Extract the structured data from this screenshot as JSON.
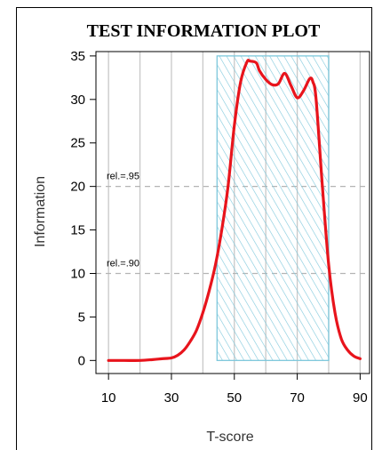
{
  "chart_data": {
    "type": "line",
    "title": "TEST INFORMATION PLOT",
    "xlabel": "T-score",
    "ylabel": "Information",
    "xlim": [
      6,
      93
    ],
    "ylim": [
      -1.5,
      35.5
    ],
    "x_ticks": [
      10,
      30,
      50,
      70,
      90
    ],
    "y_ticks": [
      0,
      5,
      10,
      15,
      20,
      25,
      30,
      35
    ],
    "vertical_gridlines": [
      10,
      20,
      30,
      40,
      50,
      60,
      70,
      80,
      90
    ],
    "grid": true,
    "line_color": "#e8141c",
    "reference_lines": [
      {
        "label": "rel.=.95",
        "y": 20
      },
      {
        "label": "rel.=.90",
        "y": 10
      }
    ],
    "shaded_region": {
      "x": [
        44.5,
        80
      ],
      "y": [
        0,
        35
      ],
      "color": "#7ec8dc"
    },
    "series": [
      {
        "x": [
          10,
          15,
          20,
          24,
          27,
          30,
          32,
          34,
          36,
          38,
          40,
          42,
          44,
          46,
          48,
          50,
          52,
          54,
          55,
          57,
          58,
          60,
          62,
          64,
          66,
          68,
          70,
          72,
          74,
          75,
          76,
          78,
          80,
          82,
          84,
          86,
          88,
          90
        ],
        "values": [
          0,
          0,
          0,
          0.1,
          0.2,
          0.3,
          0.6,
          1.2,
          2.2,
          3.5,
          5.5,
          8.0,
          11.0,
          15.0,
          20.0,
          27.0,
          32.0,
          34.3,
          34.4,
          34.2,
          33.3,
          32.3,
          31.7,
          31.8,
          33.0,
          31.6,
          30.2,
          31.0,
          32.4,
          32.0,
          30.0,
          20.0,
          11.0,
          5.5,
          2.5,
          1.2,
          0.5,
          0.2
        ]
      }
    ]
  }
}
